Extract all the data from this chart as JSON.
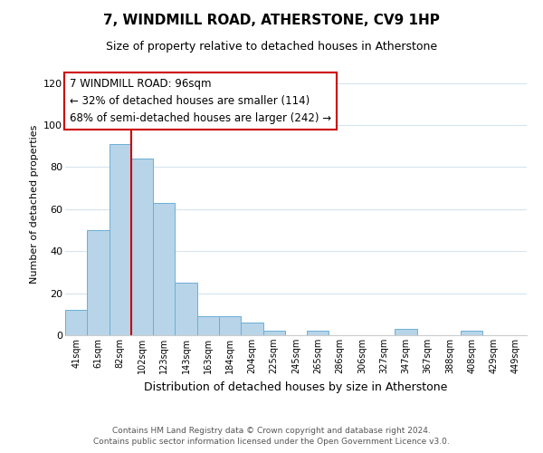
{
  "title": "7, WINDMILL ROAD, ATHERSTONE, CV9 1HP",
  "subtitle": "Size of property relative to detached houses in Atherstone",
  "xlabel": "Distribution of detached houses by size in Atherstone",
  "ylabel": "Number of detached properties",
  "bar_labels": [
    "41sqm",
    "61sqm",
    "82sqm",
    "102sqm",
    "123sqm",
    "143sqm",
    "163sqm",
    "184sqm",
    "204sqm",
    "225sqm",
    "245sqm",
    "265sqm",
    "286sqm",
    "306sqm",
    "327sqm",
    "347sqm",
    "367sqm",
    "388sqm",
    "408sqm",
    "429sqm",
    "449sqm"
  ],
  "bar_values": [
    12,
    50,
    91,
    84,
    63,
    25,
    9,
    9,
    6,
    2,
    0,
    2,
    0,
    0,
    0,
    3,
    0,
    0,
    2,
    0,
    0
  ],
  "bar_color": "#b8d4e8",
  "bar_edge_color": "#6aafd6",
  "vline_color": "#cc0000",
  "vline_x_index": 2.5,
  "ylim": [
    0,
    125
  ],
  "yticks": [
    0,
    20,
    40,
    60,
    80,
    100,
    120
  ],
  "annotation_title": "7 WINDMILL ROAD: 96sqm",
  "annotation_line1": "← 32% of detached houses are smaller (114)",
  "annotation_line2": "68% of semi-detached houses are larger (242) →",
  "annotation_box_color": "#ffffff",
  "annotation_box_edge": "#cc0000",
  "footer_line1": "Contains HM Land Registry data © Crown copyright and database right 2024.",
  "footer_line2": "Contains public sector information licensed under the Open Government Licence v3.0.",
  "background_color": "#ffffff",
  "grid_color": "#d4e4f0"
}
